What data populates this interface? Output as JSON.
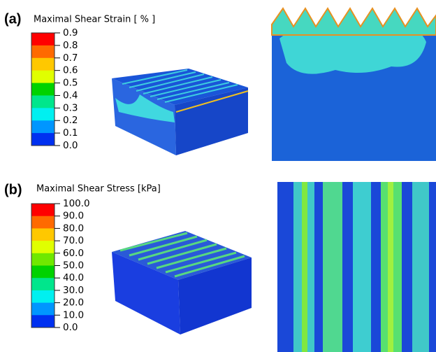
{
  "panels": [
    {
      "label": "(a)",
      "title": "Maximal Shear Strain [ % ]",
      "legend": [
        "0.9",
        "0.8",
        "0.7",
        "0.6",
        "0.5",
        "0.4",
        "0.3",
        "0.2",
        "0.1",
        "0.0"
      ]
    },
    {
      "label": "(b)",
      "title": "Maximal Shear Stress [kPa]",
      "legend": [
        "100.0",
        "90.0",
        "80.0",
        "70.0",
        "60.0",
        "50.0",
        "40.0",
        "30.0",
        "20.0",
        "10.0",
        "0.0"
      ]
    }
  ]
}
